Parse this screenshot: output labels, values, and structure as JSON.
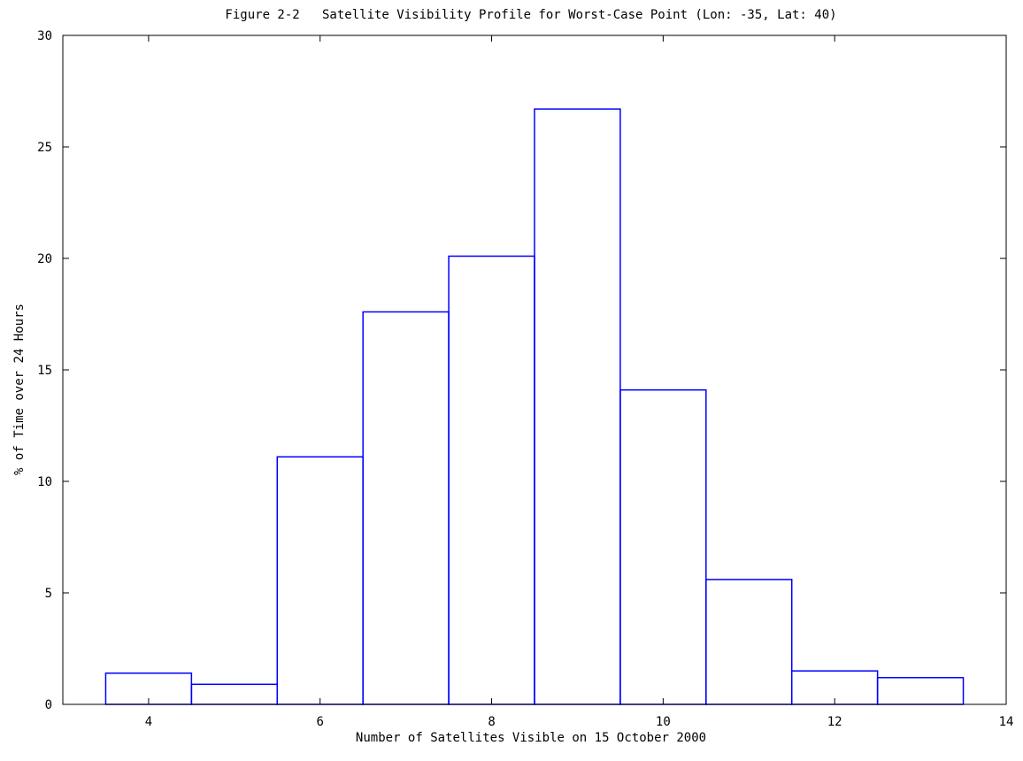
{
  "chart_data": {
    "type": "bar",
    "title": "Figure 2-2   Satellite Visibility Profile for Worst-Case Point (Lon: -35, Lat: 40)",
    "xlabel": "Number of Satellites Visible on 15 October 2000",
    "ylabel": "% of Time over 24 Hours",
    "xlim": [
      3,
      14
    ],
    "ylim": [
      0,
      30
    ],
    "x_ticks": [
      4,
      6,
      8,
      10,
      12,
      14
    ],
    "y_ticks": [
      0,
      5,
      10,
      15,
      20,
      25,
      30
    ],
    "categories": [
      4,
      5,
      6,
      7,
      8,
      9,
      10,
      11,
      12,
      13
    ],
    "values": [
      1.4,
      0.9,
      11.1,
      17.6,
      20.1,
      26.7,
      14.1,
      5.6,
      1.5,
      1.2
    ],
    "bar_width": 1,
    "grid": false,
    "legend": "none",
    "bar_color": "#0000ff",
    "axis_color": "#000000"
  }
}
